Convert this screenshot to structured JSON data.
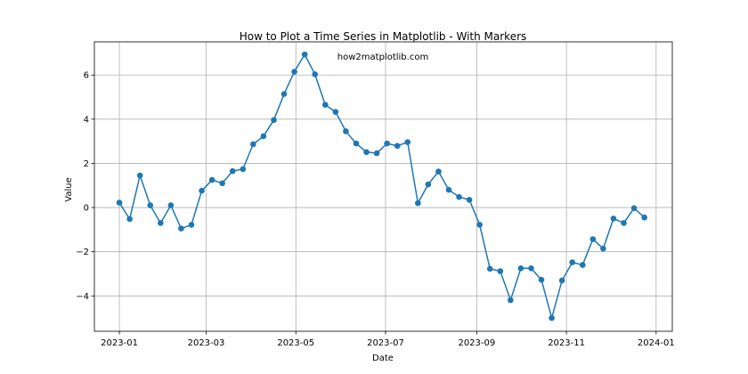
{
  "chart_data": {
    "type": "line",
    "title": "How to Plot a Time Series in Matplotlib - With Markers",
    "annotation": "how2matplotlib.com",
    "xlabel": "Date",
    "ylabel": "Value",
    "xlim": [
      "2022-12-15",
      "2024-01-12"
    ],
    "ylim": [
      -5.6,
      7.5
    ],
    "grid": true,
    "x_ticks": [
      {
        "date": "2023-01-01",
        "label": "2023-01"
      },
      {
        "date": "2023-03-01",
        "label": "2023-03"
      },
      {
        "date": "2023-05-01",
        "label": "2023-05"
      },
      {
        "date": "2023-07-01",
        "label": "2023-07"
      },
      {
        "date": "2023-09-01",
        "label": "2023-09"
      },
      {
        "date": "2023-11-01",
        "label": "2023-11"
      },
      {
        "date": "2024-01-01",
        "label": "2024-01"
      }
    ],
    "y_ticks": [
      {
        "value": -4,
        "label": "−4"
      },
      {
        "value": -2,
        "label": "−2"
      },
      {
        "value": 0,
        "label": "0"
      },
      {
        "value": 2,
        "label": "2"
      },
      {
        "value": 4,
        "label": "4"
      },
      {
        "value": 6,
        "label": "6"
      }
    ],
    "colors": {
      "series": "#1f77b4",
      "grid": "#b0b0b0",
      "axes": "#000000"
    },
    "series": [
      {
        "x": [
          "2023-01-01",
          "2023-01-08",
          "2023-01-15",
          "2023-01-22",
          "2023-01-29",
          "2023-02-05",
          "2023-02-12",
          "2023-02-19",
          "2023-02-26",
          "2023-03-05",
          "2023-03-12",
          "2023-03-19",
          "2023-03-26",
          "2023-04-02",
          "2023-04-09",
          "2023-04-16",
          "2023-04-23",
          "2023-04-30",
          "2023-05-07",
          "2023-05-14",
          "2023-05-21",
          "2023-05-28",
          "2023-06-04",
          "2023-06-11",
          "2023-06-18",
          "2023-06-25",
          "2023-07-02",
          "2023-07-09",
          "2023-07-16",
          "2023-07-23",
          "2023-07-30",
          "2023-08-06",
          "2023-08-13",
          "2023-08-20",
          "2023-08-27",
          "2023-09-03",
          "2023-09-10",
          "2023-09-17",
          "2023-09-24",
          "2023-10-01",
          "2023-10-08",
          "2023-10-15",
          "2023-10-22",
          "2023-10-29",
          "2023-11-05",
          "2023-11-12",
          "2023-11-19",
          "2023-11-26",
          "2023-12-03",
          "2023-12-10",
          "2023-12-17",
          "2023-12-24"
        ],
        "values": [
          0.22,
          -0.52,
          1.45,
          0.1,
          -0.7,
          0.1,
          -0.95,
          -0.78,
          0.76,
          1.25,
          1.1,
          1.65,
          1.74,
          2.87,
          3.23,
          3.96,
          5.14,
          6.15,
          6.93,
          6.03,
          4.65,
          4.33,
          3.45,
          2.9,
          2.51,
          2.46,
          2.9,
          2.79,
          2.96,
          0.2,
          1.05,
          1.63,
          0.8,
          0.48,
          0.35,
          -0.78,
          -2.77,
          -2.88,
          -4.19,
          -2.75,
          -2.75,
          -3.27,
          -5.0,
          -3.3,
          -2.48,
          -2.6,
          -1.43,
          -1.86,
          -0.5,
          -0.7,
          -0.03,
          -0.45
        ]
      }
    ]
  }
}
